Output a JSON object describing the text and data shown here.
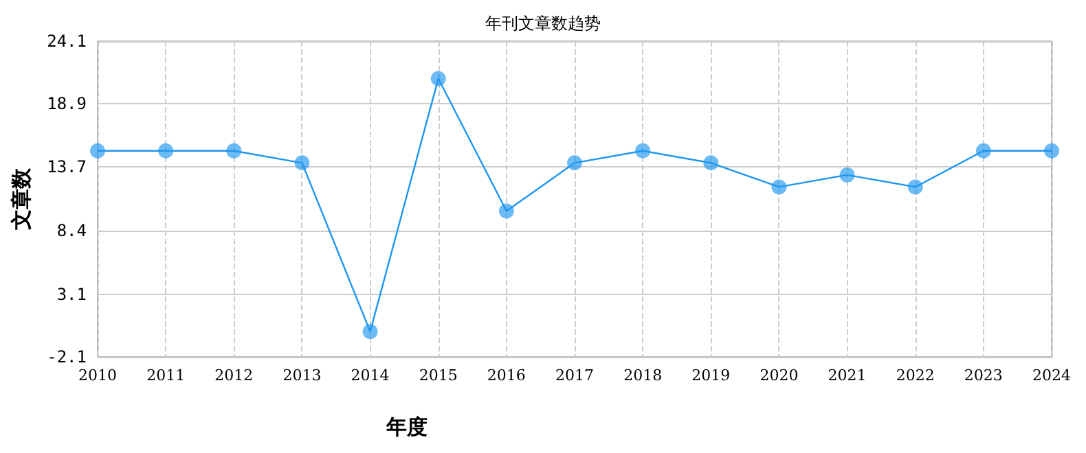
{
  "chart_data": {
    "type": "line",
    "title": "年刊文章数趋势",
    "xlabel": "年度",
    "ylabel": "文章数",
    "categories": [
      "2010",
      "2011",
      "2012",
      "2013",
      "2014",
      "2015",
      "2016",
      "2017",
      "2018",
      "2019",
      "2020",
      "2021",
      "2022",
      "2023",
      "2024"
    ],
    "series": [
      {
        "color": "#1e96f0",
        "values": [
          15,
          15,
          15,
          14,
          0,
          21,
          10,
          14,
          15,
          14,
          12,
          13,
          12,
          15,
          15
        ]
      }
    ],
    "ylim": [
      -2.1,
      24.1
    ],
    "yticks": [
      -2.1,
      3.1,
      8.4,
      13.7,
      18.9,
      24.1
    ],
    "grid": true,
    "marker": "circle",
    "line_style": "solid"
  }
}
